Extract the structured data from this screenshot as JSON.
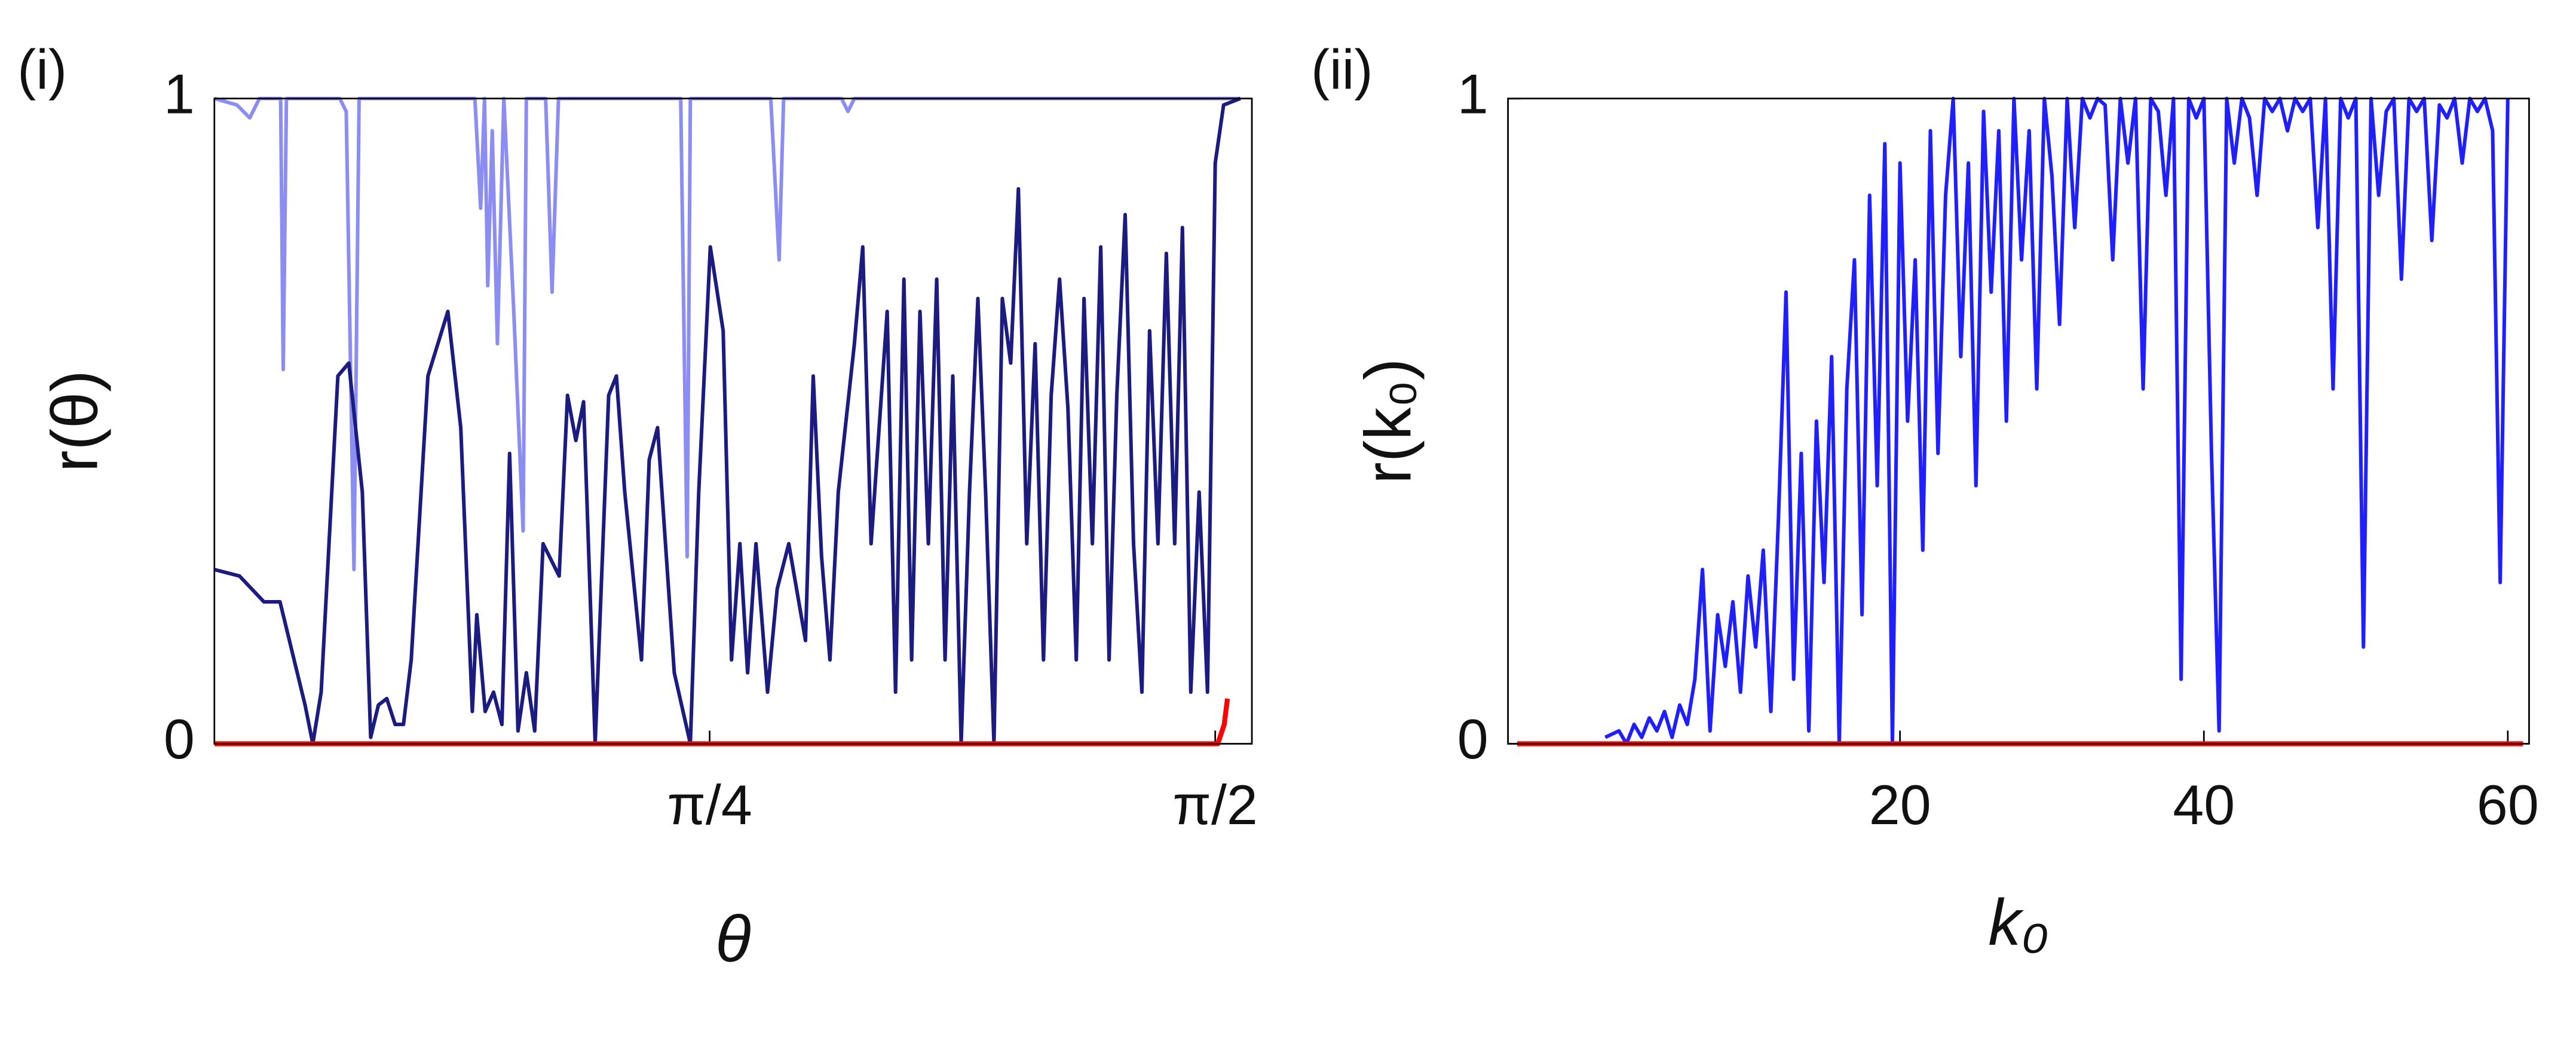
{
  "chart_data": [
    {
      "type": "line",
      "title": "(i)",
      "y_label": "r(θ)",
      "x_label": "θ",
      "xlim": [
        0.015,
        1.628
      ],
      "ylim": [
        0,
        1
      ],
      "xticks": [
        {
          "value": 0.785,
          "label": "π/4"
        },
        {
          "value": 1.571,
          "label": "π/2"
        }
      ],
      "yticks": [
        0,
        1
      ],
      "series": [
        {
          "color": "#8b8df2",
          "x": [
            0.015,
            0.05,
            0.07,
            0.085,
            0.118,
            0.122,
            0.127,
            0.21,
            0.22,
            0.232,
            0.24,
            0.42,
            0.429,
            0.435,
            0.44,
            0.447,
            0.455,
            0.465,
            0.48,
            0.495,
            0.5,
            0.53,
            0.54,
            0.55,
            0.74,
            0.75,
            0.755,
            0.88,
            0.893,
            0.9,
            0.99,
            1.0,
            1.01,
            1.61
          ],
          "values": [
            1,
            0.99,
            0.97,
            1,
            1,
            0.58,
            1,
            1,
            0.98,
            0.27,
            1,
            1,
            0.83,
            1,
            0.71,
            0.95,
            0.62,
            1,
            0.68,
            0.33,
            1,
            1,
            0.7,
            1,
            1,
            0.29,
            1,
            1,
            0.75,
            1,
            1,
            0.98,
            1,
            1
          ]
        },
        {
          "color": "#1b1b80",
          "x": [
            0.015,
            0.054,
            0.092,
            0.117,
            0.156,
            0.168,
            0.181,
            0.207,
            0.224,
            0.245,
            0.258,
            0.27,
            0.283,
            0.296,
            0.309,
            0.321,
            0.347,
            0.378,
            0.398,
            0.416,
            0.423,
            0.436,
            0.449,
            0.462,
            0.474,
            0.487,
            0.5,
            0.513,
            0.526,
            0.551,
            0.564,
            0.577,
            0.589,
            0.607,
            0.628,
            0.64,
            0.653,
            0.679,
            0.691,
            0.704,
            0.73,
            0.755,
            0.768,
            0.786,
            0.806,
            0.819,
            0.832,
            0.844,
            0.857,
            0.875,
            0.89,
            0.908,
            0.934,
            0.946,
            0.959,
            0.972,
            0.985,
            1.01,
            1.023,
            1.036,
            1.061,
            1.074,
            1.087,
            1.099,
            1.112,
            1.125,
            1.138,
            1.151,
            1.163,
            1.176,
            1.189,
            1.202,
            1.214,
            1.227,
            1.24,
            1.253,
            1.265,
            1.278,
            1.291,
            1.304,
            1.316,
            1.329,
            1.342,
            1.355,
            1.367,
            1.38,
            1.393,
            1.406,
            1.418,
            1.431,
            1.444,
            1.457,
            1.469,
            1.482,
            1.495,
            1.508,
            1.52,
            1.533,
            1.546,
            1.559,
            1.571,
            1.584,
            1.61
          ],
          "values": [
            0.27,
            0.26,
            0.22,
            0.22,
            0.06,
            0,
            0.08,
            0.57,
            0.59,
            0.39,
            0.01,
            0.06,
            0.07,
            0.03,
            0.03,
            0.13,
            0.57,
            0.67,
            0.49,
            0.05,
            0.2,
            0.05,
            0.08,
            0.03,
            0.45,
            0.02,
            0.11,
            0.02,
            0.31,
            0.26,
            0.54,
            0.47,
            0.53,
            0,
            0.54,
            0.57,
            0.39,
            0.13,
            0.44,
            0.49,
            0.11,
            0,
            0.39,
            0.77,
            0.64,
            0.13,
            0.31,
            0.11,
            0.31,
            0.08,
            0.24,
            0.31,
            0.16,
            0.57,
            0.29,
            0.13,
            0.39,
            0.62,
            0.77,
            0.31,
            0.67,
            0.08,
            0.72,
            0.13,
            0.67,
            0.31,
            0.72,
            0.13,
            0.57,
            0,
            0.39,
            0.69,
            0.39,
            0,
            0.69,
            0.59,
            0.86,
            0.31,
            0.62,
            0.13,
            0.54,
            0.72,
            0.52,
            0.13,
            0.69,
            0.31,
            0.77,
            0.13,
            0.54,
            0.82,
            0.31,
            0.08,
            0.64,
            0.31,
            0.76,
            0.31,
            0.8,
            0.08,
            0.39,
            0.08,
            0.9,
            0.99,
            1
          ]
        },
        {
          "color": "#ff0000",
          "x": [
            0.015,
            1.575,
            1.585,
            1.59
          ],
          "values": [
            0,
            0,
            0.03,
            0.07
          ]
        }
      ]
    },
    {
      "type": "line",
      "title": "(ii)",
      "y_label": "r(k₀)",
      "x_label": "k₀",
      "xlim": [
        -5.8,
        61.4
      ],
      "ylim": [
        0,
        1
      ],
      "xticks": [
        20,
        40,
        60
      ],
      "yticks": [
        0,
        1
      ],
      "series": [
        {
          "color": "#1f1fff",
          "x": [
            0.6,
            1.5,
            2,
            2.5,
            3,
            3.5,
            4,
            4.5,
            5,
            5.5,
            6,
            6.5,
            7,
            7.5,
            8,
            8.5,
            9,
            9.5,
            10,
            10.5,
            11,
            11.5,
            12,
            12.5,
            13,
            13.5,
            14,
            14.5,
            15,
            15.5,
            16,
            16.5,
            17,
            17.5,
            18,
            18.5,
            19,
            19.5,
            20,
            20.5,
            21,
            21.5,
            22,
            22.5,
            23,
            23.5,
            24,
            24.5,
            25,
            25.5,
            26,
            26.5,
            27,
            27.5,
            28,
            28.5,
            29,
            29.5,
            30,
            30.5,
            31,
            31.5,
            32,
            32.5,
            33,
            33.5,
            34,
            34.5,
            35,
            35.5,
            36,
            36.5,
            37,
            37.5,
            38,
            38.5,
            39,
            39.5,
            40,
            40.5,
            41,
            41.5,
            42,
            42.5,
            43,
            43.5,
            44,
            44.5,
            45,
            45.5,
            46,
            46.5,
            47,
            47.5,
            48,
            48.5,
            49,
            49.5,
            50,
            50.5,
            51,
            51.5,
            52,
            52.5,
            53,
            53.5,
            54,
            54.5,
            55,
            55.5,
            56,
            56.5,
            57,
            57.5,
            58,
            58.5,
            59,
            59.5,
            60
          ],
          "values": [
            0.01,
            0.02,
            0.0,
            0.03,
            0.01,
            0.04,
            0.02,
            0.05,
            0.01,
            0.06,
            0.03,
            0.1,
            0.27,
            0.02,
            0.2,
            0.12,
            0.22,
            0.08,
            0.26,
            0.15,
            0.3,
            0.05,
            0.35,
            0.7,
            0.1,
            0.45,
            0.02,
            0.5,
            0.25,
            0.6,
            0.0,
            0.55,
            0.75,
            0.2,
            0.85,
            0.4,
            0.93,
            0.0,
            0.9,
            0.5,
            0.75,
            0.3,
            0.95,
            0.45,
            0.85,
            1.0,
            0.6,
            0.9,
            0.4,
            0.98,
            0.7,
            0.95,
            0.5,
            1.0,
            0.75,
            0.95,
            0.55,
            1.0,
            0.88,
            0.65,
            1.0,
            0.8,
            1.0,
            0.97,
            1.0,
            0.99,
            0.75,
            1.0,
            0.9,
            1.0,
            0.55,
            1.0,
            0.98,
            0.85,
            1.0,
            0.1,
            1.0,
            0.97,
            1.0,
            0.45,
            0.02,
            1.0,
            0.9,
            1.0,
            0.97,
            0.85,
            1.0,
            0.98,
            1.0,
            0.95,
            1.0,
            0.98,
            1.0,
            0.8,
            1.0,
            0.55,
            1.0,
            0.97,
            1.0,
            0.15,
            1.0,
            0.85,
            0.98,
            1.0,
            0.72,
            1.0,
            0.98,
            1.0,
            0.78,
            0.99,
            0.97,
            1.0,
            0.9,
            1.0,
            0.98,
            1.0,
            0.95,
            0.25,
            1.0
          ]
        },
        {
          "color": "#ff0000",
          "x": [
            -5.2,
            61
          ],
          "values": [
            0,
            0
          ]
        }
      ]
    }
  ]
}
